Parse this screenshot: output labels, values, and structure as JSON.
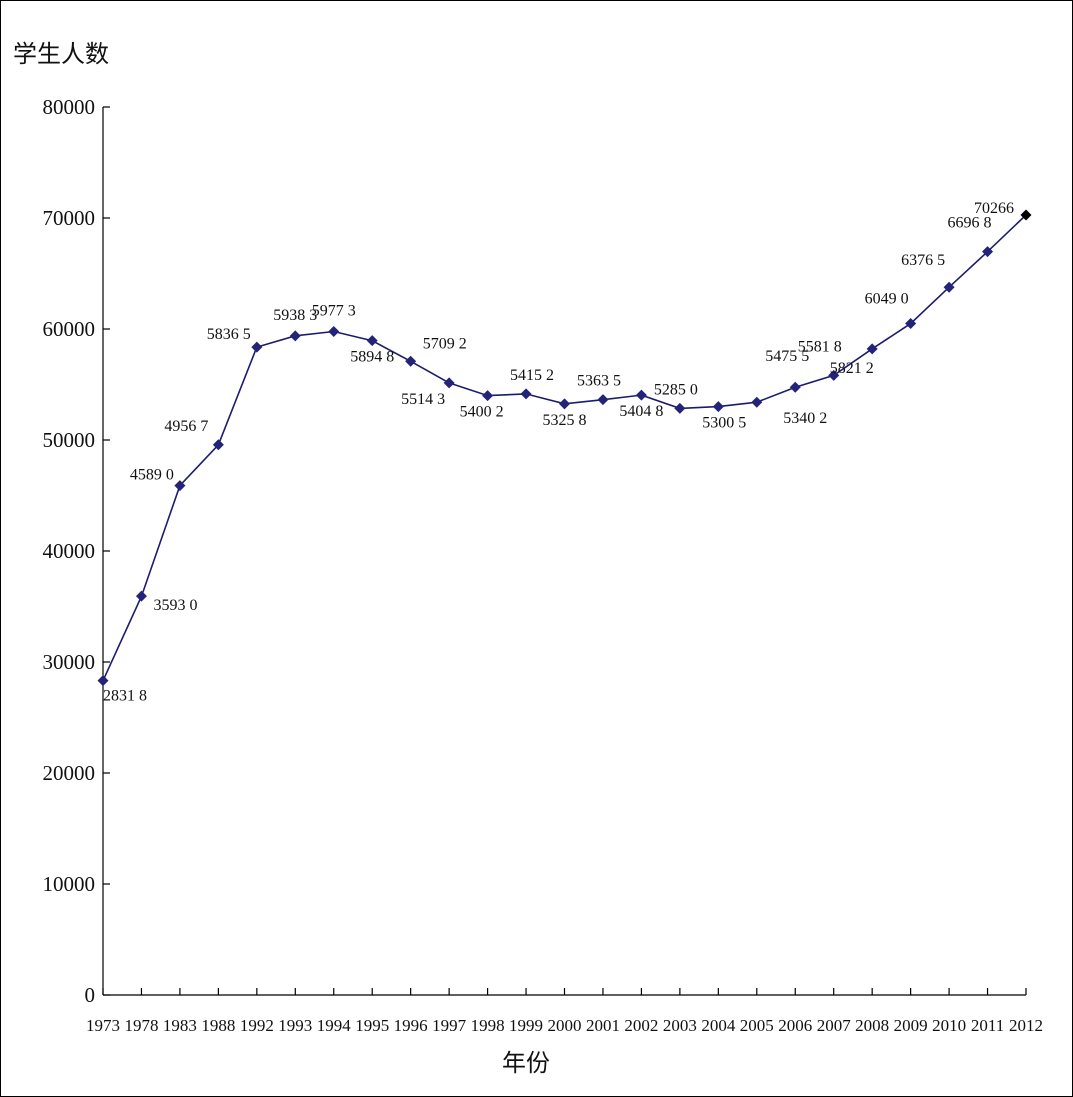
{
  "chart_data": {
    "type": "line",
    "title": "",
    "ylabel": "学生人数",
    "xlabel": "年份",
    "ylim": [
      0,
      80000
    ],
    "y_ticks": [
      0,
      10000,
      20000,
      30000,
      40000,
      50000,
      60000,
      70000,
      80000
    ],
    "y_tick_labels": [
      "0",
      "10000",
      "20000",
      "30000",
      "40000",
      "50000",
      "60000",
      "70000",
      "80000"
    ],
    "grid": false,
    "legend": "none",
    "categories": [
      "1973",
      "1978",
      "1983",
      "1988",
      "1992",
      "1993",
      "1994",
      "1995",
      "1996",
      "1997",
      "1998",
      "1999",
      "2000",
      "2001",
      "2002",
      "2003",
      "2004",
      "2005",
      "2006",
      "2007",
      "2008",
      "2009",
      "2010",
      "2011",
      "2012"
    ],
    "series": [
      {
        "values": [
          28318,
          35930,
          45890,
          49567,
          58365,
          59383,
          59773,
          58948,
          57092,
          55143,
          54002,
          54152,
          53258,
          53635,
          54048,
          52850,
          53005,
          53402,
          54755,
          55818,
          58212,
          60490,
          63765,
          66968,
          70266
        ],
        "data_labels": [
          "2831 8",
          "3593 0",
          "4589 0",
          "4956 7",
          "5836 5",
          "5938 3",
          "5977 3",
          "5894 8",
          "5709 2",
          "5514 3",
          "5400 2",
          "5415 2",
          "5325 8",
          "5363 5",
          "5404 8",
          "5285 0",
          "5300 5",
          "5340 2",
          "5475 5",
          "5581 8",
          "5821 2",
          "6049 0",
          "6376 5",
          "6696 8",
          "70266"
        ],
        "line_color": "#1c1c6e",
        "marker_color": "#23237a",
        "last_marker_color": "#000000"
      }
    ]
  }
}
